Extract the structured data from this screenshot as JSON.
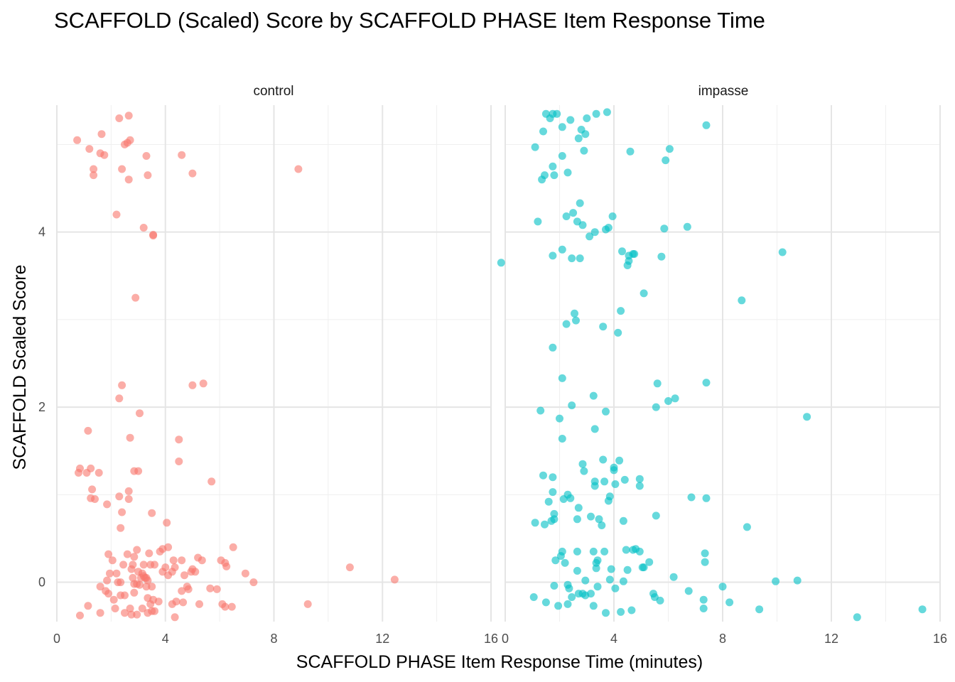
{
  "chart_data": {
    "type": "scatter",
    "title": "SCAFFOLD (Scaled) Score by SCAFFOLD PHASE Item Response Time",
    "xlabel": "SCAFFOLD PHASE Item Response Time (minutes)",
    "ylabel": "SCAFFOLD Scaled Score",
    "xlim": [
      0,
      16
    ],
    "ylim": [
      -0.45,
      5.45
    ],
    "x_ticks": [
      0,
      4,
      8,
      12,
      16
    ],
    "x_tick_labels": [
      "0",
      "4",
      "8",
      "12",
      "16"
    ],
    "y_ticks": [
      0,
      2,
      4
    ],
    "y_tick_labels": [
      "0",
      "2",
      "4"
    ],
    "grid": true,
    "legend": "none",
    "series": [
      {
        "panel": "control",
        "color": "#F8766D",
        "points": [
          [
            0.75,
            5.05
          ],
          [
            1.2,
            4.95
          ],
          [
            1.65,
            5.12
          ],
          [
            1.6,
            4.9
          ],
          [
            1.75,
            4.88
          ],
          [
            2.3,
            5.3
          ],
          [
            2.65,
            5.33
          ],
          [
            2.5,
            5.0
          ],
          [
            2.6,
            5.02
          ],
          [
            2.7,
            5.05
          ],
          [
            3.3,
            4.87
          ],
          [
            4.6,
            4.88
          ],
          [
            1.35,
            4.72
          ],
          [
            1.35,
            4.65
          ],
          [
            2.4,
            4.72
          ],
          [
            2.65,
            4.6
          ],
          [
            3.35,
            4.65
          ],
          [
            5.0,
            4.67
          ],
          [
            8.9,
            4.72
          ],
          [
            2.2,
            4.2
          ],
          [
            3.2,
            4.05
          ],
          [
            3.55,
            3.96
          ],
          [
            3.55,
            3.97
          ],
          [
            2.9,
            3.25
          ],
          [
            2.4,
            2.25
          ],
          [
            2.3,
            2.1
          ],
          [
            5.0,
            2.25
          ],
          [
            5.4,
            2.27
          ],
          [
            3.05,
            1.93
          ],
          [
            1.15,
            1.73
          ],
          [
            2.7,
            1.65
          ],
          [
            4.5,
            1.63
          ],
          [
            4.5,
            1.38
          ],
          [
            0.85,
            1.3
          ],
          [
            0.8,
            1.25
          ],
          [
            1.1,
            1.25
          ],
          [
            1.25,
            1.3
          ],
          [
            1.55,
            1.25
          ],
          [
            2.85,
            1.27
          ],
          [
            3.0,
            1.27
          ],
          [
            5.7,
            1.15
          ],
          [
            1.3,
            1.06
          ],
          [
            2.65,
            1.04
          ],
          [
            1.25,
            0.96
          ],
          [
            1.4,
            0.95
          ],
          [
            2.3,
            0.98
          ],
          [
            2.65,
            0.95
          ],
          [
            1.85,
            0.89
          ],
          [
            2.4,
            0.8
          ],
          [
            3.5,
            0.79
          ],
          [
            2.35,
            0.62
          ],
          [
            4.05,
            0.68
          ],
          [
            6.5,
            0.4
          ],
          [
            3.9,
            0.38
          ],
          [
            4.1,
            0.4
          ],
          [
            2.95,
            0.37
          ],
          [
            1.9,
            0.32
          ],
          [
            2.6,
            0.32
          ],
          [
            2.85,
            0.29
          ],
          [
            3.4,
            0.33
          ],
          [
            3.8,
            0.35
          ],
          [
            4.6,
            0.25
          ],
          [
            4.3,
            0.25
          ],
          [
            5.2,
            0.28
          ],
          [
            5.35,
            0.25
          ],
          [
            6.05,
            0.25
          ],
          [
            6.2,
            0.22
          ],
          [
            6.25,
            0.18
          ],
          [
            2.05,
            0.25
          ],
          [
            2.45,
            0.2
          ],
          [
            2.8,
            0.2
          ],
          [
            3.2,
            0.2
          ],
          [
            3.45,
            0.2
          ],
          [
            3.6,
            0.2
          ],
          [
            4.0,
            0.17
          ],
          [
            4.35,
            0.17
          ],
          [
            5.0,
            0.15
          ],
          [
            5.1,
            0.12
          ],
          [
            2.2,
            0.1
          ],
          [
            1.95,
            0.1
          ],
          [
            2.75,
            0.15
          ],
          [
            3.0,
            0.12
          ],
          [
            3.15,
            0.1
          ],
          [
            3.9,
            0.12
          ],
          [
            4.1,
            0.08
          ],
          [
            4.25,
            0.12
          ],
          [
            4.95,
            0.12
          ],
          [
            6.95,
            0.1
          ],
          [
            7.25,
            0.0
          ],
          [
            2.8,
            0.05
          ],
          [
            3.1,
            0.05
          ],
          [
            3.2,
            0.07
          ],
          [
            3.25,
            0.05
          ],
          [
            3.3,
            0.05
          ],
          [
            3.35,
            0.02
          ],
          [
            4.7,
            0.08
          ],
          [
            1.85,
            0.02
          ],
          [
            2.25,
            0.0
          ],
          [
            2.35,
            0.0
          ],
          [
            2.85,
            -0.02
          ],
          [
            2.95,
            -0.02
          ],
          [
            3.05,
            -0.03
          ],
          [
            3.3,
            -0.05
          ],
          [
            3.5,
            -0.05
          ],
          [
            4.6,
            -0.1
          ],
          [
            4.8,
            -0.05
          ],
          [
            4.85,
            -0.08
          ],
          [
            5.65,
            -0.07
          ],
          [
            5.9,
            -0.08
          ],
          [
            1.6,
            -0.05
          ],
          [
            1.8,
            -0.1
          ],
          [
            1.9,
            -0.13
          ],
          [
            2.1,
            -0.2
          ],
          [
            2.35,
            -0.15
          ],
          [
            2.5,
            -0.15
          ],
          [
            2.85,
            -0.12
          ],
          [
            3.35,
            -0.18
          ],
          [
            3.55,
            -0.2
          ],
          [
            3.75,
            -0.22
          ],
          [
            4.25,
            -0.25
          ],
          [
            4.4,
            -0.22
          ],
          [
            4.65,
            -0.23
          ],
          [
            5.25,
            -0.25
          ],
          [
            6.1,
            -0.25
          ],
          [
            6.2,
            -0.28
          ],
          [
            6.45,
            -0.28
          ],
          [
            1.15,
            -0.27
          ],
          [
            2.15,
            -0.3
          ],
          [
            2.7,
            -0.3
          ],
          [
            3.15,
            -0.3
          ],
          [
            3.45,
            -0.25
          ],
          [
            3.5,
            -0.33
          ],
          [
            3.6,
            -0.33
          ],
          [
            3.35,
            -0.35
          ],
          [
            2.5,
            -0.35
          ],
          [
            2.75,
            -0.37
          ],
          [
            2.95,
            -0.37
          ],
          [
            1.6,
            -0.35
          ],
          [
            0.85,
            -0.38
          ],
          [
            4.35,
            -0.4
          ],
          [
            9.25,
            -0.25
          ],
          [
            10.8,
            0.17
          ],
          [
            12.45,
            0.03
          ]
        ]
      },
      {
        "panel": "impasse",
        "color": "#00BFC4",
        "points": [
          [
            1.5,
            5.35
          ],
          [
            1.65,
            5.3
          ],
          [
            1.75,
            5.35
          ],
          [
            1.9,
            5.35
          ],
          [
            2.4,
            5.28
          ],
          [
            3.0,
            5.3
          ],
          [
            3.35,
            5.35
          ],
          [
            3.75,
            5.37
          ],
          [
            7.4,
            5.22
          ],
          [
            1.4,
            5.15
          ],
          [
            2.1,
            5.2
          ],
          [
            2.8,
            5.17
          ],
          [
            2.95,
            5.12
          ],
          [
            2.7,
            5.07
          ],
          [
            1.1,
            4.97
          ],
          [
            2.9,
            4.93
          ],
          [
            4.6,
            4.92
          ],
          [
            6.05,
            4.95
          ],
          [
            2.1,
            4.87
          ],
          [
            5.9,
            4.82
          ],
          [
            1.75,
            4.75
          ],
          [
            1.8,
            4.65
          ],
          [
            1.45,
            4.65
          ],
          [
            1.35,
            4.6
          ],
          [
            2.3,
            4.68
          ],
          [
            2.75,
            4.33
          ],
          [
            2.5,
            4.22
          ],
          [
            2.25,
            4.18
          ],
          [
            3.95,
            4.18
          ],
          [
            1.2,
            4.12
          ],
          [
            2.65,
            4.12
          ],
          [
            2.85,
            4.08
          ],
          [
            3.3,
            4.0
          ],
          [
            3.7,
            4.03
          ],
          [
            3.8,
            4.05
          ],
          [
            5.85,
            4.04
          ],
          [
            6.7,
            4.06
          ],
          [
            3.1,
            3.95
          ],
          [
            -0.15,
            3.65
          ],
          [
            2.1,
            3.8
          ],
          [
            1.75,
            3.73
          ],
          [
            2.45,
            3.7
          ],
          [
            2.75,
            3.7
          ],
          [
            4.3,
            3.78
          ],
          [
            4.55,
            3.73
          ],
          [
            4.7,
            3.75
          ],
          [
            4.75,
            3.75
          ],
          [
            4.5,
            3.62
          ],
          [
            4.55,
            3.67
          ],
          [
            5.75,
            3.72
          ],
          [
            10.2,
            3.77
          ],
          [
            5.1,
            3.3
          ],
          [
            8.7,
            3.22
          ],
          [
            2.55,
            3.07
          ],
          [
            4.25,
            3.1
          ],
          [
            2.6,
            2.99
          ],
          [
            2.25,
            2.95
          ],
          [
            3.6,
            2.92
          ],
          [
            4.15,
            2.85
          ],
          [
            1.75,
            2.68
          ],
          [
            2.1,
            2.33
          ],
          [
            5.6,
            2.27
          ],
          [
            7.4,
            2.28
          ],
          [
            3.25,
            2.13
          ],
          [
            6.25,
            2.1
          ],
          [
            6.0,
            2.07
          ],
          [
            2.45,
            2.02
          ],
          [
            5.55,
            2.0
          ],
          [
            1.3,
            1.96
          ],
          [
            3.7,
            1.95
          ],
          [
            2.0,
            1.87
          ],
          [
            11.1,
            1.89
          ],
          [
            3.3,
            1.75
          ],
          [
            2.1,
            1.64
          ],
          [
            3.6,
            1.4
          ],
          [
            4.2,
            1.39
          ],
          [
            2.85,
            1.35
          ],
          [
            4.0,
            1.31
          ],
          [
            4.0,
            1.28
          ],
          [
            2.9,
            1.27
          ],
          [
            1.4,
            1.22
          ],
          [
            1.75,
            1.2
          ],
          [
            3.3,
            1.15
          ],
          [
            3.65,
            1.15
          ],
          [
            4.4,
            1.17
          ],
          [
            4.95,
            1.18
          ],
          [
            3.3,
            1.1
          ],
          [
            4.05,
            1.12
          ],
          [
            4.95,
            1.1
          ],
          [
            1.75,
            1.03
          ],
          [
            2.3,
            1.0
          ],
          [
            2.15,
            0.95
          ],
          [
            2.4,
            0.96
          ],
          [
            3.85,
            0.98
          ],
          [
            3.8,
            0.93
          ],
          [
            1.6,
            0.92
          ],
          [
            6.85,
            0.97
          ],
          [
            7.4,
            0.96
          ],
          [
            2.7,
            0.85
          ],
          [
            1.8,
            0.78
          ],
          [
            3.15,
            0.75
          ],
          [
            3.45,
            0.72
          ],
          [
            4.35,
            0.7
          ],
          [
            5.55,
            0.76
          ],
          [
            1.1,
            0.68
          ],
          [
            1.45,
            0.66
          ],
          [
            1.7,
            0.7
          ],
          [
            1.8,
            0.72
          ],
          [
            2.65,
            0.72
          ],
          [
            3.55,
            0.65
          ],
          [
            8.9,
            0.63
          ],
          [
            2.1,
            0.35
          ],
          [
            2.65,
            0.35
          ],
          [
            3.25,
            0.35
          ],
          [
            3.65,
            0.35
          ],
          [
            4.45,
            0.37
          ],
          [
            4.7,
            0.37
          ],
          [
            4.8,
            0.38
          ],
          [
            4.95,
            0.35
          ],
          [
            2.05,
            0.3
          ],
          [
            1.85,
            0.25
          ],
          [
            2.2,
            0.22
          ],
          [
            3.35,
            0.22
          ],
          [
            3.4,
            0.25
          ],
          [
            7.35,
            0.33
          ],
          [
            7.35,
            0.23
          ],
          [
            5.3,
            0.23
          ],
          [
            5.1,
            0.17
          ],
          [
            5.05,
            0.17
          ],
          [
            2.65,
            0.13
          ],
          [
            3.35,
            0.16
          ],
          [
            3.9,
            0.15
          ],
          [
            4.5,
            0.14
          ],
          [
            6.2,
            0.06
          ],
          [
            2.95,
            0.02
          ],
          [
            3.85,
            0.03
          ],
          [
            4.35,
            0.01
          ],
          [
            9.95,
            0.01
          ],
          [
            10.75,
            0.02
          ],
          [
            8.0,
            -0.05
          ],
          [
            1.8,
            -0.04
          ],
          [
            2.3,
            -0.03
          ],
          [
            2.35,
            -0.07
          ],
          [
            3.4,
            -0.05
          ],
          [
            4.05,
            -0.07
          ],
          [
            6.75,
            -0.1
          ],
          [
            2.7,
            -0.13
          ],
          [
            2.85,
            -0.13
          ],
          [
            2.95,
            -0.15
          ],
          [
            3.15,
            -0.13
          ],
          [
            5.45,
            -0.13
          ],
          [
            2.45,
            -0.17
          ],
          [
            5.5,
            -0.17
          ],
          [
            1.05,
            -0.17
          ],
          [
            7.3,
            -0.2
          ],
          [
            5.7,
            -0.21
          ],
          [
            1.5,
            -0.23
          ],
          [
            2.3,
            -0.25
          ],
          [
            3.25,
            -0.27
          ],
          [
            1.95,
            -0.27
          ],
          [
            7.3,
            -0.3
          ],
          [
            8.25,
            -0.23
          ],
          [
            9.35,
            -0.31
          ],
          [
            3.7,
            -0.35
          ],
          [
            4.25,
            -0.34
          ],
          [
            4.65,
            -0.32
          ],
          [
            12.95,
            -0.4
          ],
          [
            15.35,
            -0.31
          ]
        ]
      }
    ]
  }
}
